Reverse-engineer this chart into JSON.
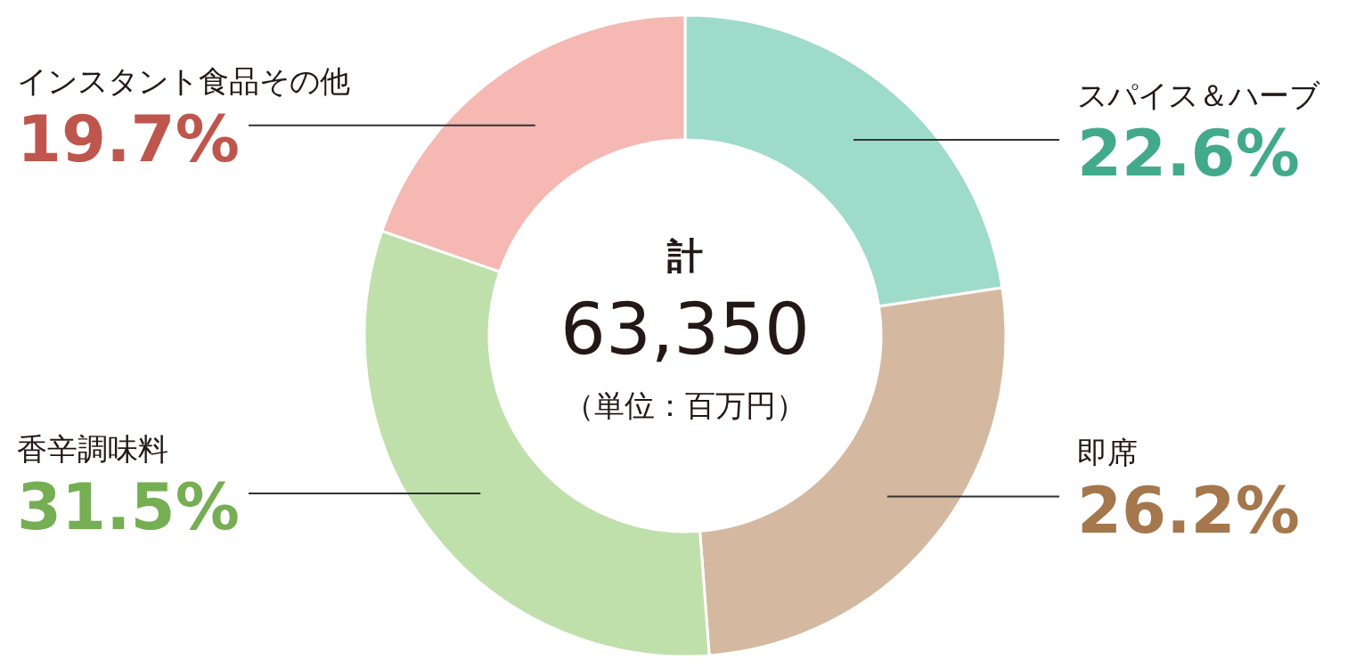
{
  "chart_data": {
    "type": "donut",
    "title": "計",
    "annotations": [
      "63,350",
      "（単位：百万円）"
    ],
    "categories": [
      "スパイス＆ハーブ",
      "即席",
      "香辛調味料",
      "インスタント食品その他"
    ],
    "values": [
      22.6,
      26.2,
      31.5,
      19.7
    ],
    "colors": [
      "#9edbc8",
      "#d4b9a0",
      "#bfe0ab",
      "#f5b8b3"
    ],
    "value_labels": [
      "22.6%",
      "26.2%",
      "31.5%",
      "19.7%"
    ]
  }
}
